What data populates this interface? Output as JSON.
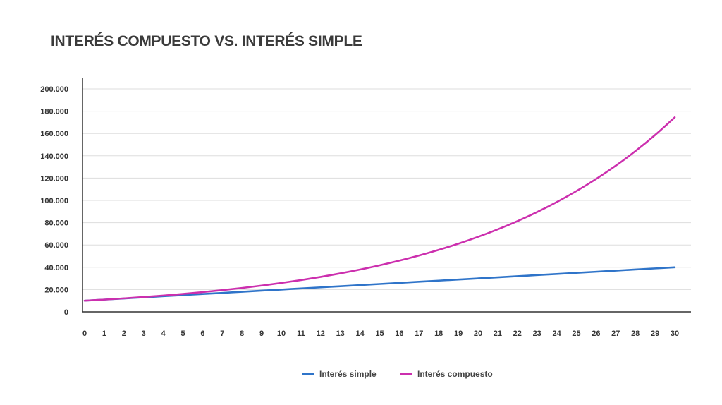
{
  "chart_data": {
    "type": "line",
    "title": "INTERÉS COMPUESTO VS. INTERÉS SIMPLE",
    "xlabel": "",
    "ylabel": "",
    "x": [
      0,
      1,
      2,
      3,
      4,
      5,
      6,
      7,
      8,
      9,
      10,
      11,
      12,
      13,
      14,
      15,
      16,
      17,
      18,
      19,
      20,
      21,
      22,
      23,
      24,
      25,
      26,
      27,
      28,
      29,
      30
    ],
    "ylim": [
      0,
      200000
    ],
    "yticks": [
      0,
      20000,
      40000,
      60000,
      80000,
      100000,
      120000,
      140000,
      160000,
      180000,
      200000
    ],
    "ytick_labels": [
      "0",
      "20.000",
      "40.000",
      "60.000",
      "80.000",
      "100.000",
      "120.000",
      "140.000",
      "160.000",
      "180.000",
      "200.000"
    ],
    "grid": true,
    "legend_position": "bottom-center",
    "series": [
      {
        "name": "Interés simple",
        "color": "#2f74c9",
        "values": [
          10000,
          11000,
          12000,
          13000,
          14000,
          15000,
          16000,
          17000,
          18000,
          19000,
          20000,
          21000,
          22000,
          23000,
          24000,
          25000,
          26000,
          27000,
          28000,
          29000,
          30000,
          31000,
          32000,
          33000,
          34000,
          35000,
          36000,
          37000,
          38000,
          39000,
          40000
        ]
      },
      {
        "name": "Interés compuesto",
        "color": "#cc2fae",
        "values": [
          10000,
          11000,
          12100,
          13310,
          14641,
          16105,
          17716,
          19487,
          21436,
          23579,
          25937,
          28531,
          31384,
          34523,
          37975,
          41772,
          45950,
          50545,
          55599,
          61159,
          67275,
          74002,
          81403,
          89543,
          98497,
          108347,
          119182,
          131100,
          144210,
          158631,
          174494
        ]
      }
    ]
  }
}
